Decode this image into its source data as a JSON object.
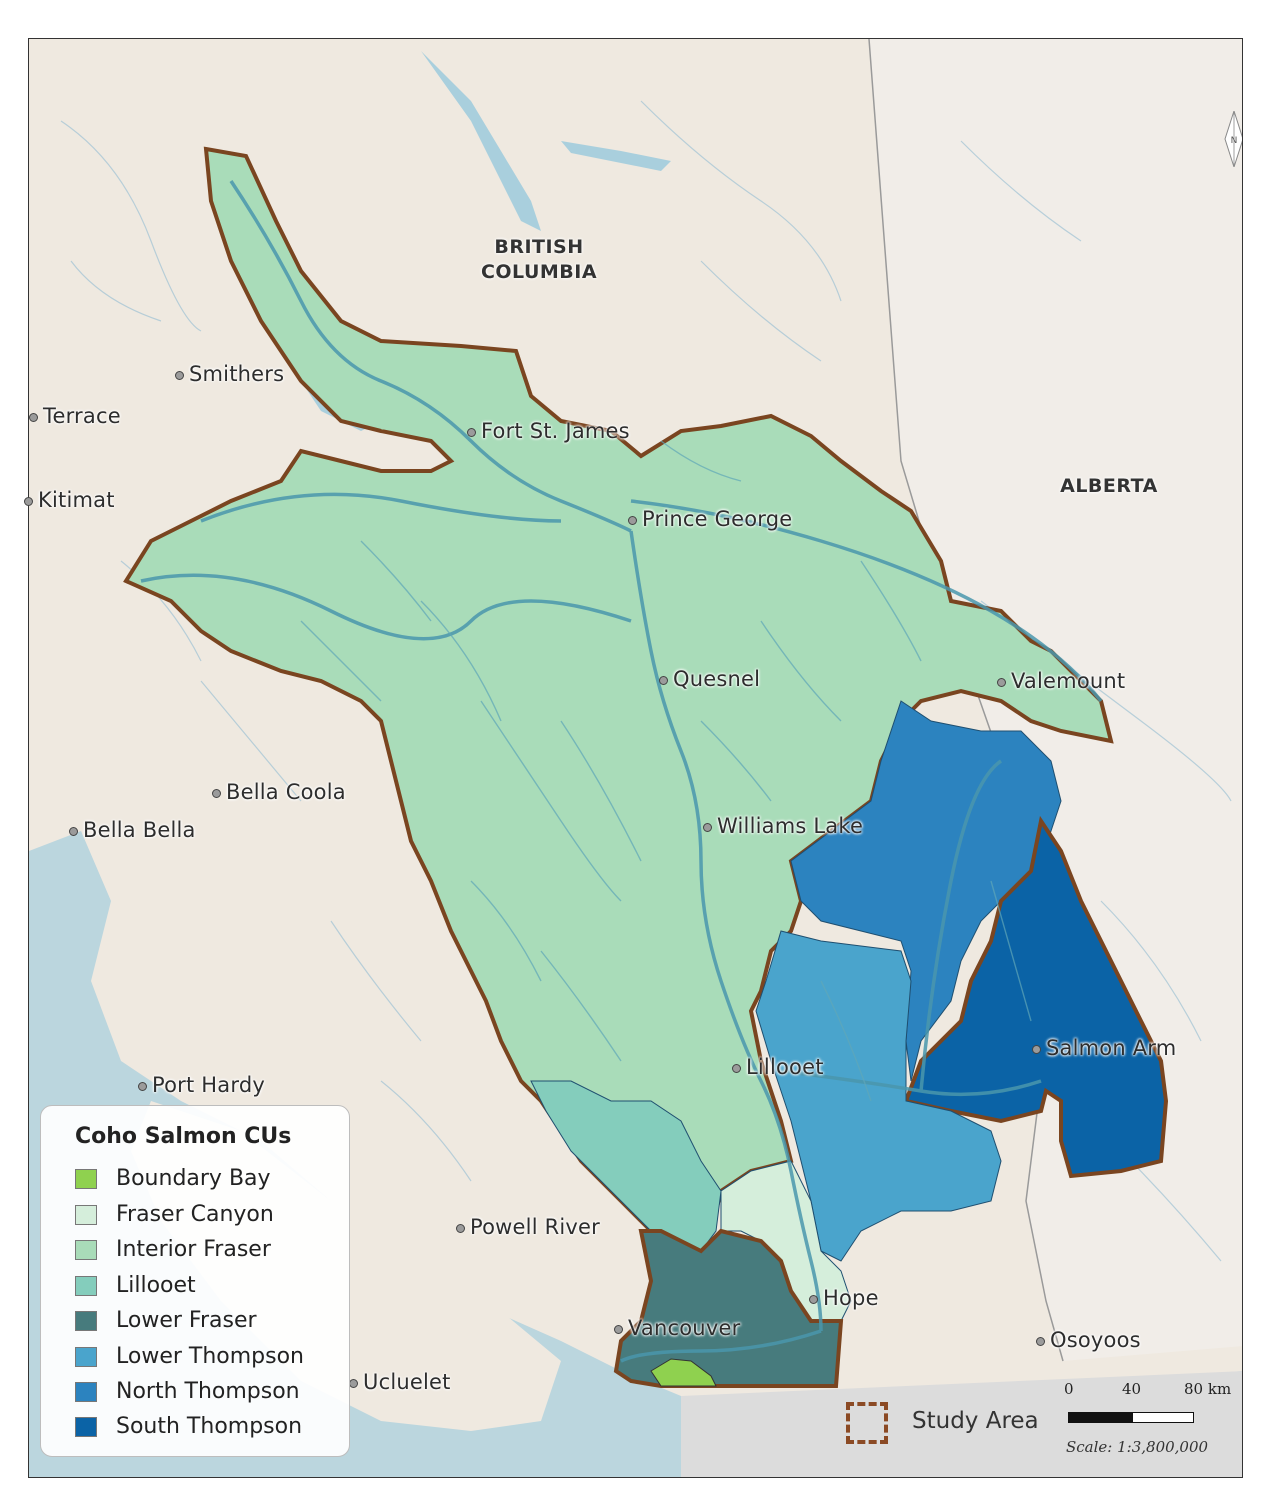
{
  "regions": {
    "bc": [
      "BRITISH",
      "COLUMBIA"
    ],
    "alberta": "ALBERTA"
  },
  "cities": {
    "smithers": "Smithers",
    "terrace": "Terrace",
    "kitimat": "Kitimat",
    "fort_st_james": "Fort St. James",
    "prince_george": "Prince George",
    "quesnel": "Quesnel",
    "valemount": "Valemount",
    "bella_coola": "Bella Coola",
    "bella_bella": "Bella Bella",
    "williams_lake": "Williams Lake",
    "salmon_arm": "Salmon Arm",
    "lillooet": "Lillooet",
    "port_hardy": "Port Hardy",
    "powell_river": "Powell River",
    "hope": "Hope",
    "vancouver": "Vancouver",
    "osoyoos": "Osoyoos",
    "ucluelet": "Ucluelet"
  },
  "legend": {
    "title": "Coho Salmon CUs",
    "items": [
      {
        "label": "Boundary Bay",
        "color": "#8fd14f"
      },
      {
        "label": "Fraser Canyon",
        "color": "#d5eedb"
      },
      {
        "label": "Interior Fraser",
        "color": "#a9dcb9"
      },
      {
        "label": "Lillooet",
        "color": "#84cdbc"
      },
      {
        "label": "Lower Fraser",
        "color": "#477b7d"
      },
      {
        "label": "Lower Thompson",
        "color": "#4aa4cc"
      },
      {
        "label": "North Thompson",
        "color": "#2c83bf"
      },
      {
        "label": "South Thompson",
        "color": "#0b63a6"
      }
    ]
  },
  "study_area": "Study Area",
  "scale": {
    "ticks": [
      "0",
      "40",
      "80 km"
    ],
    "text": "Scale: 1:3,800,000"
  },
  "north_label": "N",
  "colors": {
    "land": "#efe9e0",
    "water": "#a9cfdd",
    "study_border": "#8b4a24"
  }
}
